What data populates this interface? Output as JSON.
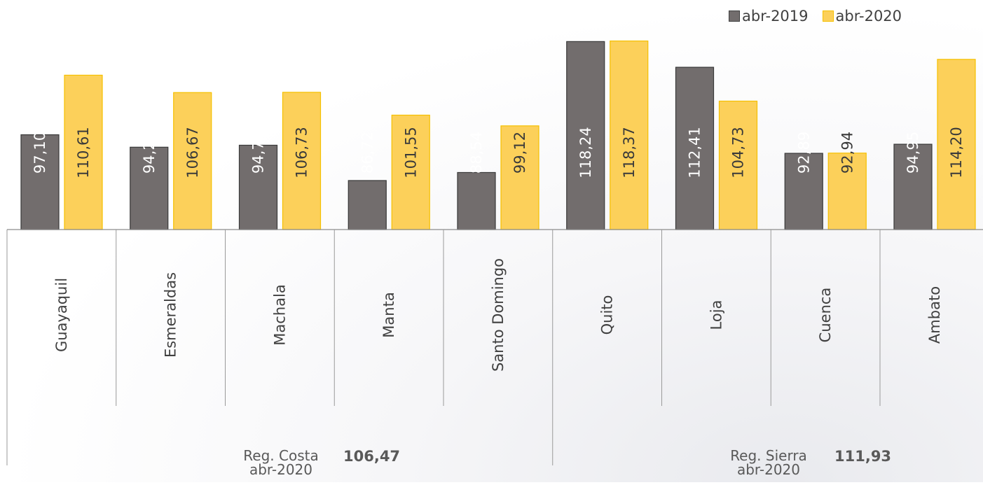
{
  "chart_data": {
    "type": "bar",
    "categories": [
      "Guayaquil",
      "Esmeraldas",
      "Machala",
      "Manta",
      "Santo Domingo",
      "Quito",
      "Loja",
      "Cuenca",
      "Ambato"
    ],
    "series": [
      {
        "name": "abr-2019",
        "values": [
          97.1,
          94.28,
          94.73,
          86.72,
          88.54,
          118.24,
          112.41,
          92.89,
          94.95
        ],
        "labels": [
          "97,10",
          "94,28",
          "94,73",
          "86,72",
          "88,54",
          "118,24",
          "112,41",
          "92,89",
          "94,95"
        ],
        "color": "#726d6d"
      },
      {
        "name": "abr-2020",
        "values": [
          110.61,
          106.67,
          106.73,
          101.55,
          99.12,
          118.37,
          104.73,
          92.94,
          114.2
        ],
        "labels": [
          "110,61",
          "106,67",
          "106,73",
          "101,55",
          "99,12",
          "118,37",
          "104,73",
          "92,94",
          "114,20"
        ],
        "color": "#fcd05a"
      }
    ],
    "grid": false,
    "legend": "top-right",
    "regions": [
      {
        "label_line1": "Reg. Costa",
        "label_line2": "abr-2020",
        "value": "106,47",
        "categories": [
          "Guayaquil",
          "Esmeraldas",
          "Machala",
          "Manta",
          "Santo Domingo"
        ]
      },
      {
        "label_line1": "Reg. Sierra",
        "label_line2": "abr-2020",
        "value": "111,93",
        "categories": [
          "Quito",
          "Loja",
          "Cuenca",
          "Ambato"
        ]
      }
    ]
  }
}
